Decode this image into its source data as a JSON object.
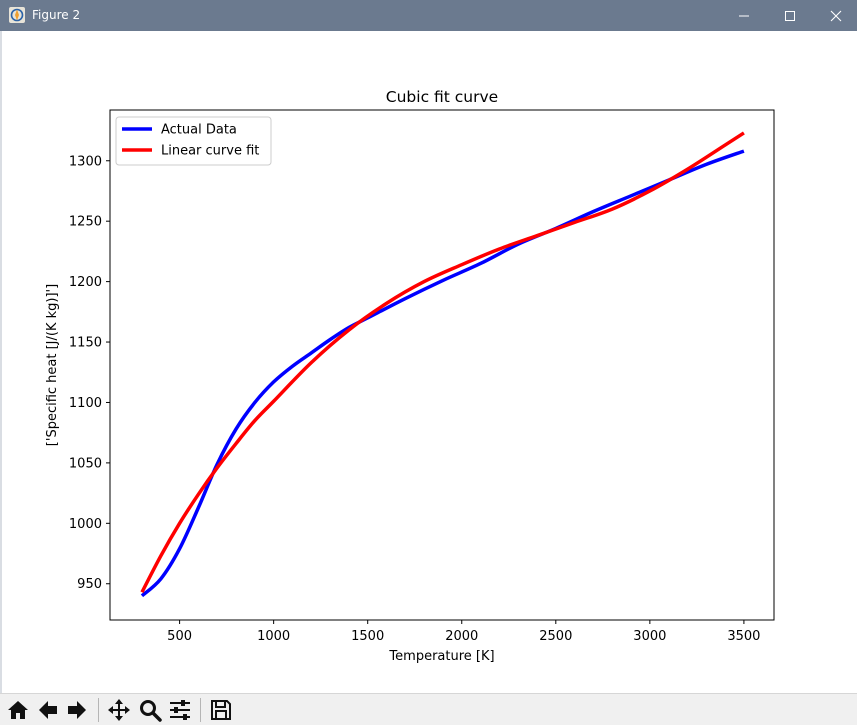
{
  "window": {
    "title": "Figure 2"
  },
  "toolbar": {
    "buttons": [
      {
        "name": "home-button",
        "icon": "home-icon"
      },
      {
        "name": "back-button",
        "icon": "arrow-left-icon"
      },
      {
        "name": "forward-button",
        "icon": "arrow-right-icon"
      },
      {
        "name": "pan-button",
        "icon": "move-icon"
      },
      {
        "name": "zoom-button",
        "icon": "magnifier-icon"
      },
      {
        "name": "configure-subplots-button",
        "icon": "sliders-icon"
      },
      {
        "name": "save-button",
        "icon": "floppy-disk-icon"
      }
    ]
  },
  "chart_data": {
    "type": "line",
    "title": "Cubic fit curve",
    "xlabel": "Temperature [K]",
    "ylabel": "['Specific heat [J/(K kg)]']",
    "xlim": [
      130,
      3660
    ],
    "ylim": [
      920,
      1342
    ],
    "xticks": [
      500,
      1000,
      1500,
      2000,
      2500,
      3000,
      3500
    ],
    "yticks": [
      950,
      1000,
      1050,
      1100,
      1150,
      1200,
      1250,
      1300
    ],
    "grid": false,
    "legend_position": "top-left",
    "series": [
      {
        "name": "Actual Data",
        "color": "#0000ff",
        "x": [
          300,
          400,
          500,
          600,
          700,
          800,
          900,
          1000,
          1100,
          1200,
          1300,
          1400,
          1500,
          1700,
          1900,
          2100,
          2300,
          2500,
          2700,
          2900,
          3100,
          3300,
          3500
        ],
        "y": [
          940,
          954,
          979,
          1013,
          1049,
          1078,
          1100,
          1117,
          1130,
          1141,
          1152,
          1162,
          1170,
          1186,
          1201,
          1215,
          1231,
          1244,
          1258,
          1271,
          1284,
          1297,
          1308
        ]
      },
      {
        "name": "Linear curve fit",
        "color": "#ff0000",
        "x": [
          300,
          400,
          500,
          600,
          700,
          800,
          900,
          1000,
          1200,
          1400,
          1600,
          1800,
          2000,
          2200,
          2400,
          2600,
          2800,
          3000,
          3200,
          3400,
          3500
        ],
        "y": [
          943,
          973,
          1000,
          1024,
          1046,
          1066,
          1085,
          1101,
          1133,
          1160,
          1182,
          1200,
          1214,
          1227,
          1238,
          1249,
          1260,
          1275,
          1293,
          1313,
          1323
        ]
      }
    ]
  }
}
